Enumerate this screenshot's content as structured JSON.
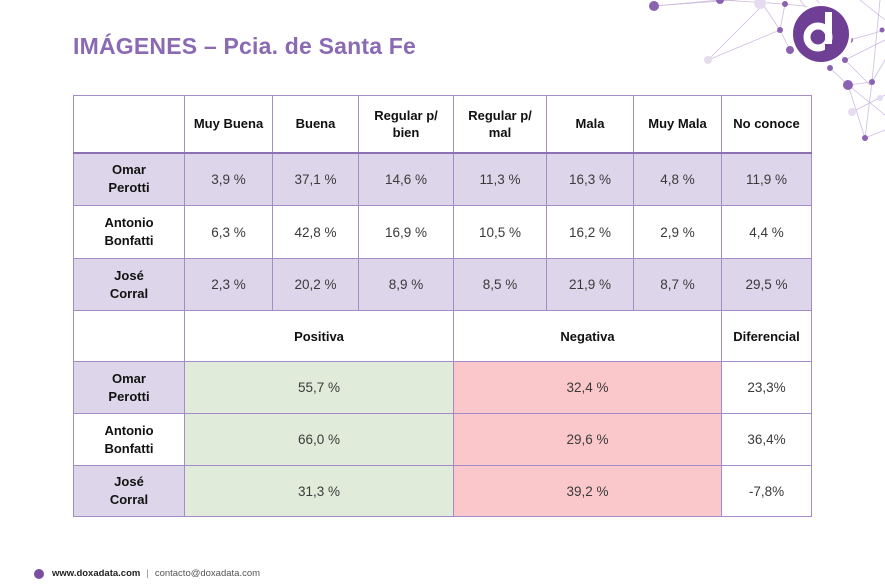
{
  "title": "IMÁGENES – Pcia. de Santa Fe",
  "colors": {
    "title": "#8a6ab3",
    "border": "#a48cc6",
    "row_lavender": "#ddd6ea",
    "positive": "#e0ecd9",
    "negative": "#fac8cb",
    "logo": "#6e3f94"
  },
  "logo": {
    "icon": "doxadata-d-logo-icon",
    "letter": "d"
  },
  "table1": {
    "headers": [
      "",
      "Muy Buena",
      "Buena",
      "Regular p/\nbien",
      "Regular p/\nmal",
      "Mala",
      "Muy Mala",
      "No conoce"
    ],
    "header_lines": [
      [
        ""
      ],
      [
        "Muy Buena"
      ],
      [
        "Buena"
      ],
      [
        "Regular p/",
        "bien"
      ],
      [
        "Regular p/",
        "mal"
      ],
      [
        "Mala"
      ],
      [
        "Muy Mala"
      ],
      [
        "No conoce"
      ]
    ],
    "rows": [
      {
        "name_line1": "Omar",
        "name_line2": "Perotti",
        "values": [
          "3,9 %",
          "37,1 %",
          "14,6 %",
          "11,3 %",
          "16,3 %",
          "4,8 %",
          "11,9 %"
        ]
      },
      {
        "name_line1": "Antonio",
        "name_line2": "Bonfatti",
        "values": [
          "6,3 %",
          "42,8 %",
          "16,9 %",
          "10,5 %",
          "16,2 %",
          "2,9 %",
          "4,4 %"
        ]
      },
      {
        "name_line1": "José",
        "name_line2": "Corral",
        "values": [
          "2,3 %",
          "20,2 %",
          "8,9 %",
          "8,5 %",
          "21,9 %",
          "8,7 %",
          "29,5 %"
        ]
      }
    ]
  },
  "table2": {
    "headers": {
      "positive": "Positiva",
      "negative": "Negativa",
      "differential": "Diferencial"
    },
    "rows": [
      {
        "name_line1": "Omar",
        "name_line2": "Perotti",
        "positive": "55,7 %",
        "negative": "32,4 %",
        "differential": "23,3%"
      },
      {
        "name_line1": "Antonio",
        "name_line2": "Bonfatti",
        "positive": "66,0 %",
        "negative": "29,6 %",
        "differential": "36,4%"
      },
      {
        "name_line1": "José",
        "name_line2": "Corral",
        "positive": "31,3 %",
        "negative": "39,2 %",
        "differential": "-7,8%"
      }
    ]
  },
  "footer": {
    "website": "www.doxadata.com",
    "separator": "|",
    "email": "contacto@doxadata.com"
  }
}
